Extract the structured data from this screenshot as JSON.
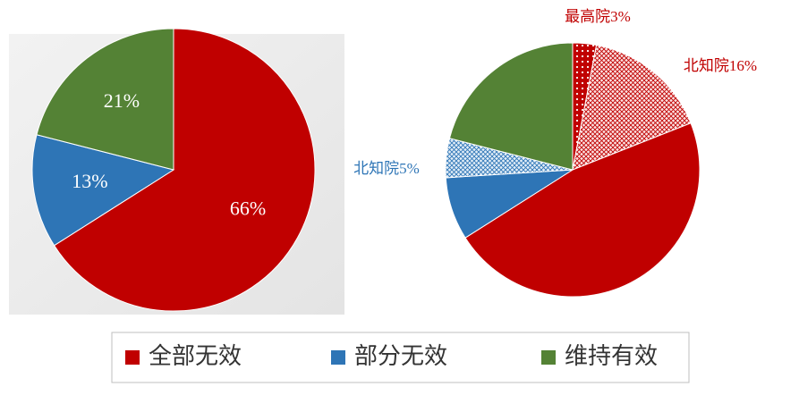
{
  "chart_data": [
    {
      "type": "pie",
      "categories": [
        "全部无效",
        "部分无效",
        "维持有效"
      ],
      "values": [
        66,
        13,
        21
      ],
      "value_labels": [
        "66%",
        "13%",
        "21%"
      ],
      "colors": [
        "#c00000",
        "#2e75b6",
        "#548235"
      ],
      "label_position": "inside"
    },
    {
      "type": "pie",
      "values": [
        3,
        16,
        47,
        8,
        5,
        21
      ],
      "value_labels": [
        "最高院3%",
        "北知院16%",
        null,
        null,
        "北知院5%",
        null
      ],
      "colors": [
        "#c00000",
        "#c00000",
        "#c00000",
        "#2e75b6",
        "#2e75b6",
        "#548235"
      ],
      "patterns": [
        "dots",
        "cross",
        null,
        null,
        "cross",
        null
      ],
      "label_position": "outside"
    }
  ]
}
